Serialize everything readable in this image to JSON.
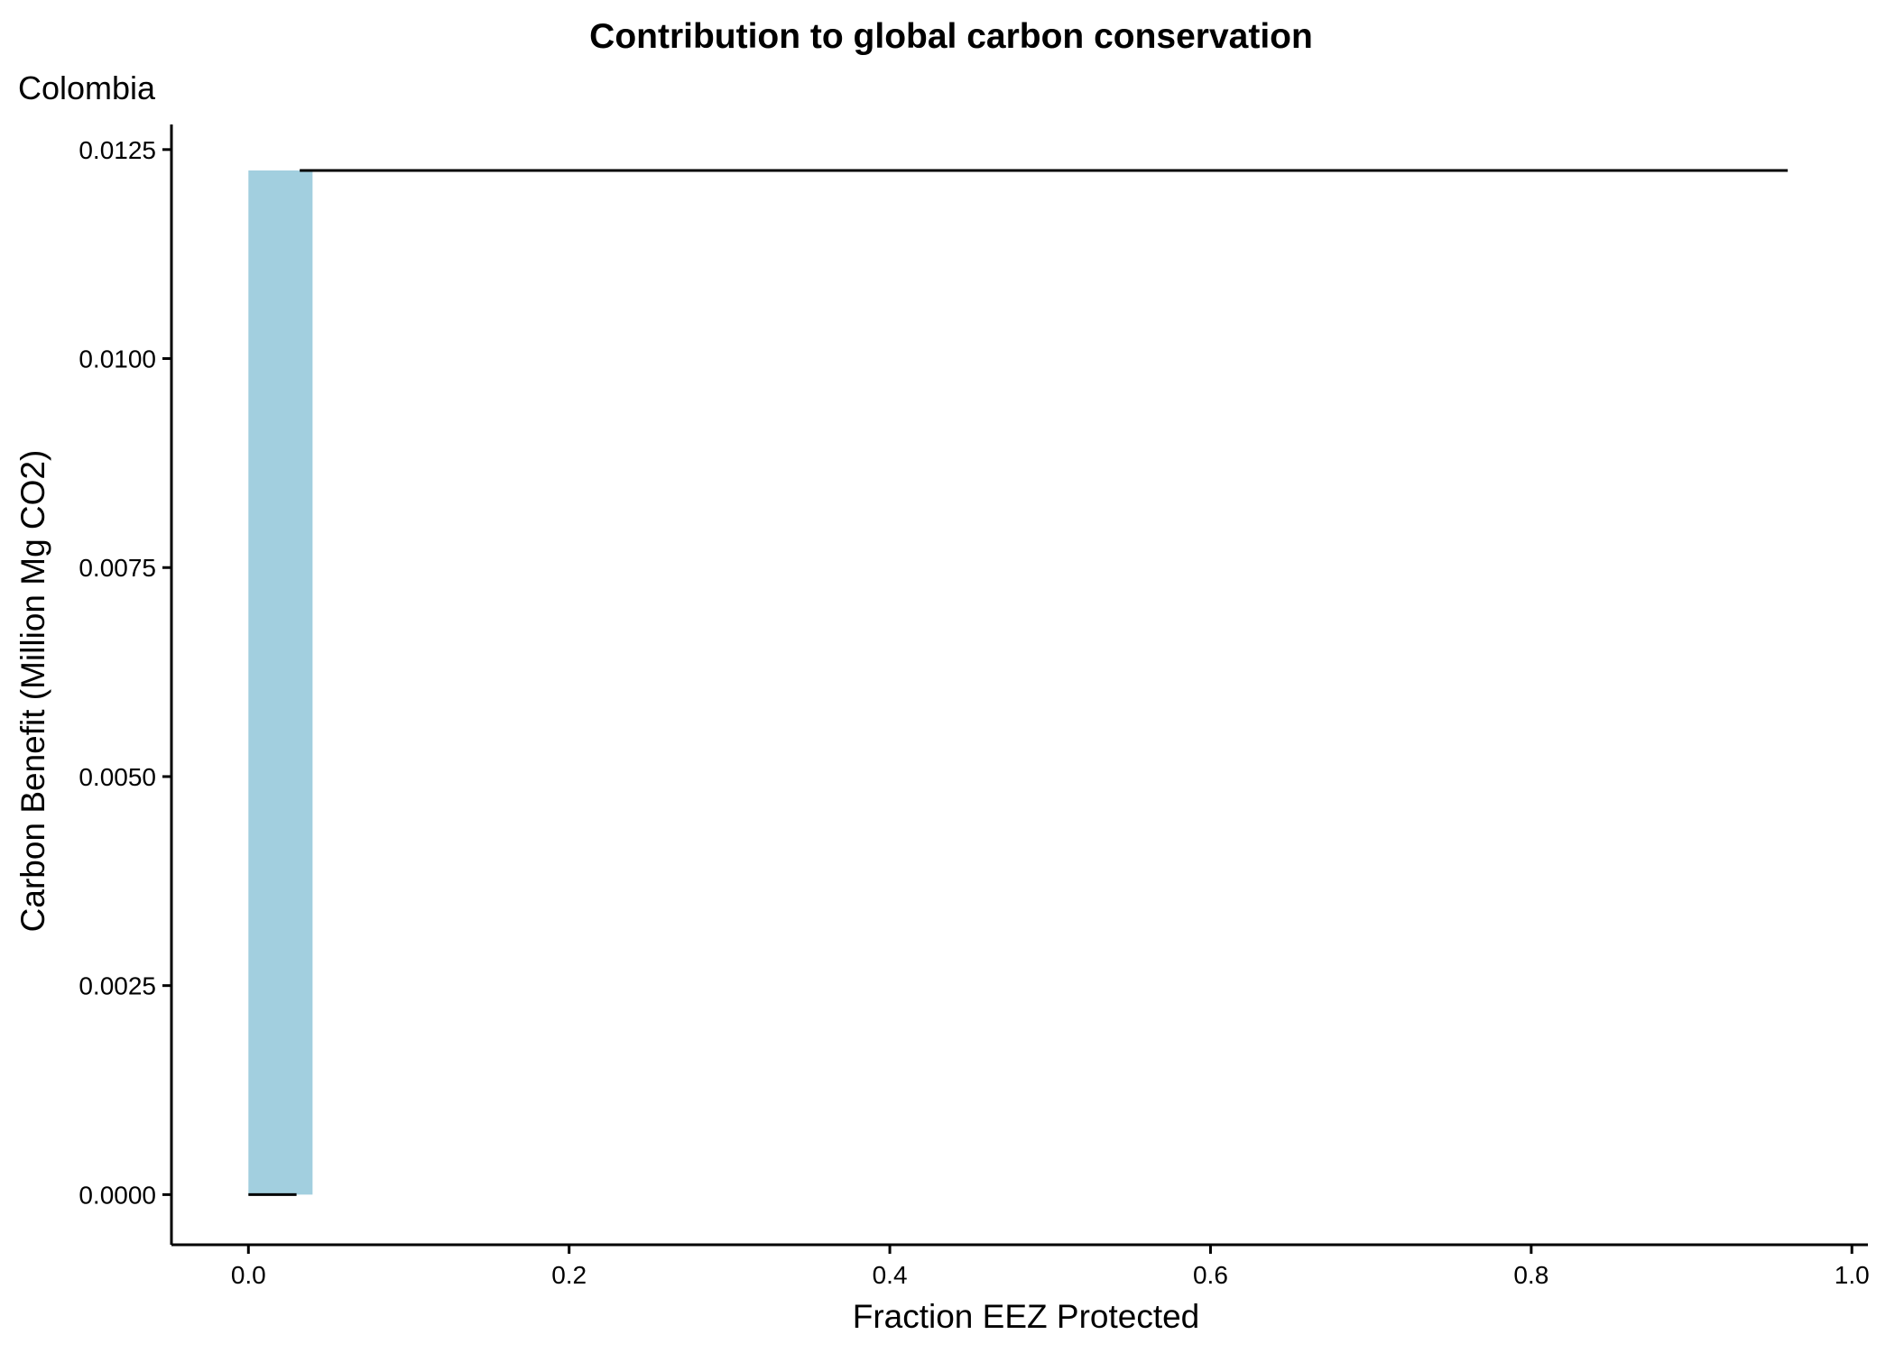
{
  "chart_data": {
    "type": "bar",
    "title": "Contribution to global carbon conservation",
    "subtitle": "Colombia",
    "xlabel": "Fraction EEZ Protected",
    "ylabel": "Carbon Benefit (Million Mg CO2)",
    "xlim": [
      -0.048,
      1.01
    ],
    "ylim": [
      -0.0006,
      0.0128
    ],
    "x_ticks": [
      0.0,
      0.2,
      0.4,
      0.6,
      0.8,
      1.0
    ],
    "x_tick_labels": [
      "0.0",
      "0.2",
      "0.4",
      "0.6",
      "0.8",
      "1.0"
    ],
    "y_ticks": [
      0.0,
      0.0025,
      0.005,
      0.0075,
      0.01,
      0.0125
    ],
    "y_tick_labels": [
      "0.0000",
      "0.0025",
      "0.0050",
      "0.0075",
      "0.0100",
      "0.0125"
    ],
    "grid": false,
    "legend": "none",
    "bars": [
      {
        "x": 0.02,
        "width": 0.04,
        "value": 0.01225,
        "color": "#a2cfdf"
      }
    ],
    "segments": [
      {
        "x": [
          0.0,
          0.03
        ],
        "y": [
          0.0,
          0.0
        ],
        "color": "#000000"
      },
      {
        "x": [
          0.032,
          0.96
        ],
        "y": [
          0.01225,
          0.01225
        ],
        "color": "#000000"
      }
    ]
  }
}
